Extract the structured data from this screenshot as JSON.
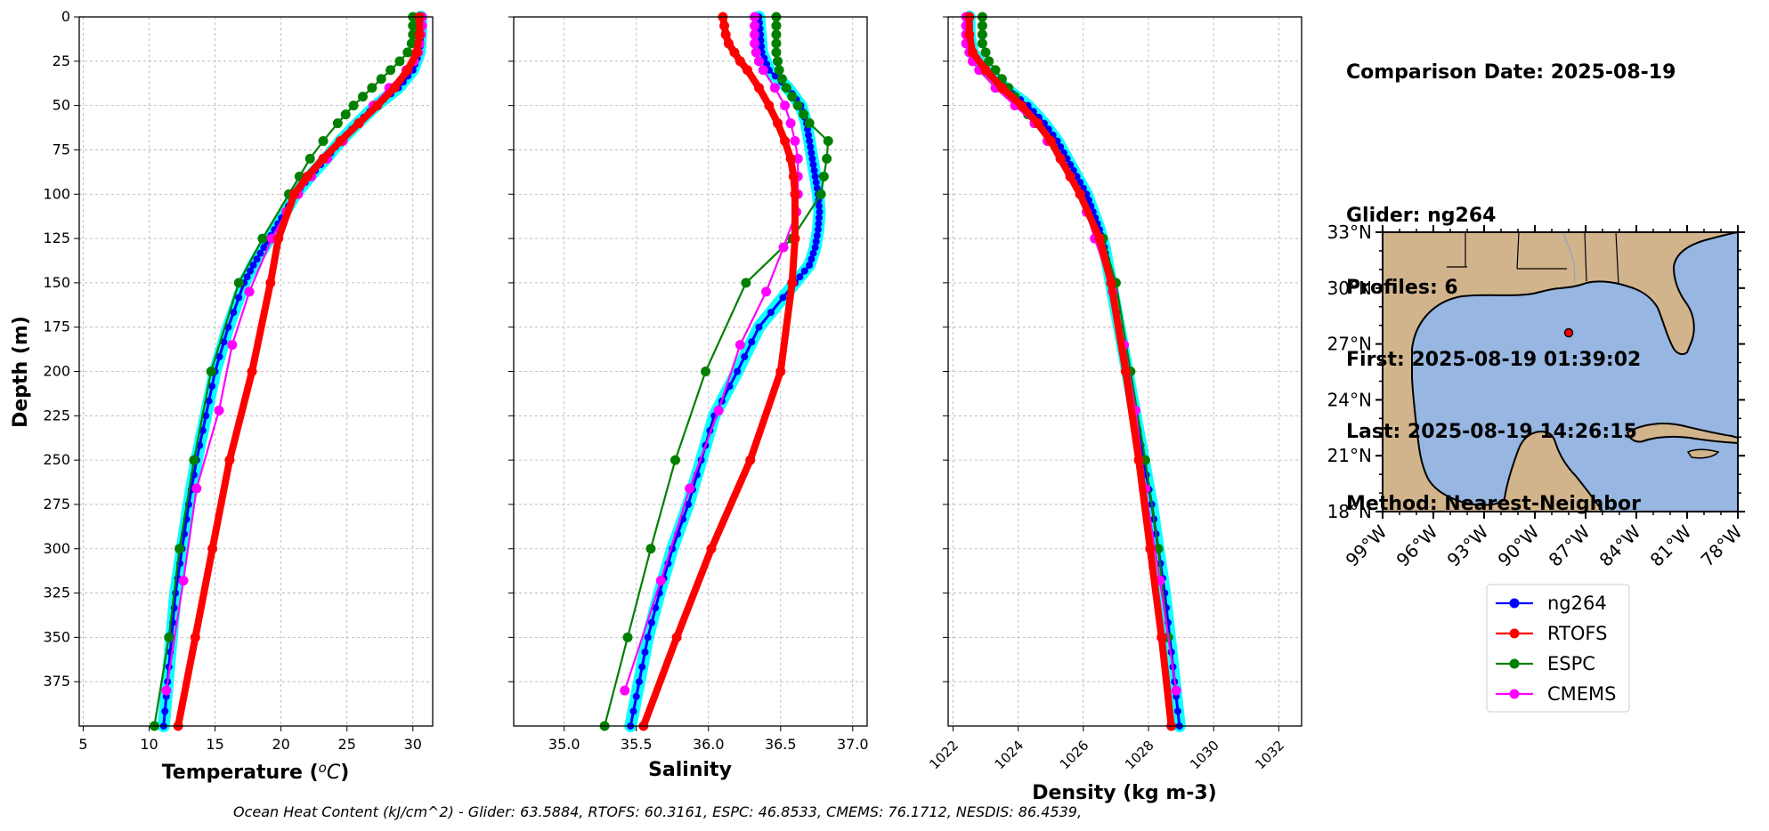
{
  "info": {
    "date_line": "Comparison Date: 2025-08-19",
    "glider_line": "Glider: ng264",
    "profiles_line": "Profiles: 6",
    "first_line": "First: 2025-08-19 01:39:02",
    "last_line": "Last: 2025-08-19 14:26:15",
    "method_line": "Method: Nearest-Neighbor"
  },
  "footer_text": "Ocean Heat Content (kJ/cm^2) - Glider: 63.5884,  RTOFS: 60.3161,  ESPC: 46.8533,  CMEMS: 76.1712,  NESDIS: 86.4539,",
  "colors": {
    "glider": "#0000ff",
    "glider_spread": "#00ffff",
    "rtofs": "#ff0000",
    "espc": "#008000",
    "cmems": "#ff00ff",
    "land": "#d2b48c",
    "ocean": "#97b6e1"
  },
  "legend": {
    "entries": [
      {
        "label": "ng264",
        "color": "#0000ff"
      },
      {
        "label": "RTOFS",
        "color": "#ff0000"
      },
      {
        "label": "ESPC",
        "color": "#008000"
      },
      {
        "label": "CMEMS",
        "color": "#ff00ff"
      }
    ]
  },
  "map": {
    "lat_ticks": [
      "33°N",
      "30°N",
      "27°N",
      "24°N",
      "21°N",
      "18°N"
    ],
    "lon_ticks": [
      "99°W",
      "96°W",
      "93°W",
      "90°W",
      "87°W",
      "84°W",
      "81°W",
      "78°W"
    ],
    "extent": {
      "lon": [
        -99,
        -78
      ],
      "lat": [
        18,
        33
      ]
    },
    "glider_location": {
      "lon": -88.0,
      "lat": 27.6
    }
  },
  "chart_data": [
    {
      "type": "line",
      "xlabel": "Temperature (°C)",
      "ylabel": "Depth (m)",
      "xlim": [
        4.7,
        31.5
      ],
      "ylim": [
        400,
        0
      ],
      "y_inverted": true,
      "grid": true,
      "x_ticks": [
        5,
        10,
        15,
        20,
        25,
        30
      ],
      "y_ticks": [
        0,
        25,
        50,
        75,
        100,
        125,
        150,
        175,
        200,
        225,
        250,
        275,
        300,
        325,
        350,
        375
      ],
      "series": [
        {
          "name": "ng264",
          "color": "#0000ff",
          "style": "glider",
          "depth": [
            0,
            10,
            20,
            30,
            40,
            50,
            60,
            70,
            80,
            90,
            100,
            110,
            120,
            130,
            140,
            150,
            175,
            200,
            225,
            250,
            275,
            300,
            325,
            350,
            375,
            400
          ],
          "values": [
            30.6,
            30.6,
            30.5,
            30.0,
            28.9,
            27.2,
            25.8,
            24.5,
            23.4,
            22.2,
            21.1,
            20.3,
            19.5,
            18.7,
            17.9,
            17.2,
            16.0,
            15.0,
            14.3,
            13.6,
            13.0,
            12.5,
            12.0,
            11.7,
            11.4,
            11.1
          ]
        },
        {
          "name": "RTOFS",
          "color": "#ff0000",
          "style": "model_thick",
          "depth": [
            0,
            10,
            20,
            30,
            40,
            50,
            60,
            70,
            80,
            90,
            100,
            125,
            150,
            200,
            250,
            300,
            350,
            400
          ],
          "values": [
            30.5,
            30.5,
            30.3,
            29.6,
            28.6,
            27.3,
            25.9,
            24.5,
            23.2,
            22.0,
            21.0,
            19.8,
            19.2,
            17.8,
            16.1,
            14.8,
            13.5,
            12.2
          ]
        },
        {
          "name": "ESPC",
          "color": "#008000",
          "style": "model",
          "depth": [
            0,
            5,
            10,
            15,
            20,
            25,
            30,
            35,
            40,
            45,
            50,
            55,
            60,
            70,
            80,
            90,
            100,
            125,
            150,
            200,
            250,
            300,
            350,
            400
          ],
          "values": [
            30.0,
            30.0,
            30.0,
            29.9,
            29.6,
            29.0,
            28.3,
            27.6,
            26.9,
            26.2,
            25.5,
            24.9,
            24.3,
            23.2,
            22.2,
            21.4,
            20.6,
            18.6,
            16.8,
            14.7,
            13.4,
            12.3,
            11.5,
            10.4
          ]
        },
        {
          "name": "CMEMS",
          "color": "#ff00ff",
          "style": "model",
          "depth": [
            0,
            5,
            10,
            15,
            20,
            25,
            30,
            40,
            50,
            60,
            70,
            80,
            90,
            100,
            110,
            125,
            155,
            185,
            222,
            266,
            318,
            380
          ],
          "values": [
            30.7,
            30.7,
            30.6,
            30.5,
            30.4,
            30.1,
            29.5,
            28.2,
            27.0,
            25.9,
            24.7,
            23.5,
            22.3,
            21.3,
            20.4,
            19.3,
            17.6,
            16.3,
            15.3,
            13.6,
            12.6,
            11.3
          ]
        }
      ]
    },
    {
      "type": "line",
      "xlabel": "Salinity",
      "ylabel": "",
      "xlim": [
        34.65,
        37.1
      ],
      "ylim": [
        400,
        0
      ],
      "y_inverted": true,
      "grid": true,
      "x_ticks": [
        35.0,
        35.5,
        36.0,
        36.5,
        37.0
      ],
      "series": [
        {
          "name": "ng264",
          "color": "#0000ff",
          "style": "glider",
          "depth": [
            0,
            10,
            20,
            30,
            40,
            50,
            60,
            70,
            80,
            90,
            100,
            110,
            120,
            130,
            140,
            150,
            175,
            200,
            225,
            250,
            275,
            300,
            325,
            350,
            375,
            400
          ],
          "values": [
            36.35,
            36.36,
            36.37,
            36.42,
            36.55,
            36.64,
            36.68,
            36.7,
            36.72,
            36.74,
            36.76,
            36.77,
            36.76,
            36.74,
            36.7,
            36.6,
            36.35,
            36.2,
            36.04,
            35.95,
            35.86,
            35.75,
            35.66,
            35.58,
            35.52,
            35.46
          ]
        },
        {
          "name": "RTOFS",
          "color": "#ff0000",
          "style": "model_thick",
          "depth": [
            0,
            5,
            10,
            15,
            20,
            25,
            30,
            40,
            50,
            60,
            70,
            80,
            90,
            100,
            125,
            150,
            200,
            250,
            300,
            350,
            400
          ],
          "values": [
            36.1,
            36.11,
            36.12,
            36.14,
            36.18,
            36.22,
            36.27,
            36.35,
            36.42,
            36.48,
            36.53,
            36.57,
            36.59,
            36.6,
            36.6,
            36.58,
            36.5,
            36.29,
            36.02,
            35.78,
            35.55
          ]
        },
        {
          "name": "ESPC",
          "color": "#008000",
          "style": "model",
          "depth": [
            0,
            5,
            10,
            15,
            20,
            25,
            30,
            35,
            40,
            45,
            50,
            55,
            60,
            70,
            80,
            90,
            100,
            125,
            150,
            200,
            250,
            300,
            350,
            400
          ],
          "values": [
            36.47,
            36.47,
            36.47,
            36.47,
            36.47,
            36.48,
            36.49,
            36.51,
            36.54,
            36.58,
            36.62,
            36.66,
            36.7,
            36.83,
            36.82,
            36.8,
            36.78,
            36.58,
            36.26,
            35.98,
            35.77,
            35.6,
            35.44,
            35.28
          ]
        },
        {
          "name": "CMEMS",
          "color": "#ff00ff",
          "style": "model",
          "depth": [
            0,
            5,
            10,
            15,
            20,
            25,
            30,
            40,
            50,
            60,
            70,
            80,
            90,
            100,
            110,
            130,
            155,
            185,
            222,
            266,
            318,
            380
          ],
          "values": [
            36.32,
            36.32,
            36.32,
            36.32,
            36.33,
            36.35,
            36.38,
            36.46,
            36.53,
            36.57,
            36.6,
            36.62,
            36.62,
            36.62,
            36.61,
            36.52,
            36.4,
            36.22,
            36.07,
            35.87,
            35.67,
            35.42
          ]
        }
      ]
    },
    {
      "type": "line",
      "xlabel": "Density (kg m-3)",
      "ylabel": "",
      "xlim": [
        1021.85,
        1032.7
      ],
      "ylim": [
        400,
        0
      ],
      "y_inverted": true,
      "grid": true,
      "x_ticks": [
        1022,
        1024,
        1026,
        1028,
        1030,
        1032
      ],
      "series": [
        {
          "name": "ng264",
          "color": "#0000ff",
          "style": "glider",
          "depth": [
            0,
            10,
            20,
            30,
            40,
            50,
            60,
            70,
            80,
            90,
            100,
            110,
            120,
            130,
            140,
            150,
            175,
            200,
            225,
            250,
            275,
            300,
            325,
            350,
            375,
            400
          ],
          "values": [
            1022.5,
            1022.5,
            1022.6,
            1023.0,
            1023.6,
            1024.3,
            1024.8,
            1025.2,
            1025.5,
            1025.8,
            1026.1,
            1026.3,
            1026.5,
            1026.65,
            1026.75,
            1026.85,
            1027.1,
            1027.35,
            1027.6,
            1027.85,
            1028.1,
            1028.3,
            1028.5,
            1028.65,
            1028.8,
            1028.95
          ]
        },
        {
          "name": "RTOFS",
          "color": "#ff0000",
          "style": "model_thick",
          "depth": [
            0,
            10,
            20,
            30,
            40,
            50,
            60,
            70,
            80,
            90,
            100,
            125,
            150,
            200,
            250,
            300,
            350,
            400
          ],
          "values": [
            1022.5,
            1022.5,
            1022.6,
            1023.0,
            1023.5,
            1024.1,
            1024.6,
            1025.0,
            1025.3,
            1025.6,
            1025.9,
            1026.5,
            1026.85,
            1027.3,
            1027.7,
            1028.05,
            1028.4,
            1028.7
          ]
        },
        {
          "name": "ESPC",
          "color": "#008000",
          "style": "model",
          "depth": [
            0,
            5,
            10,
            15,
            20,
            25,
            30,
            35,
            40,
            45,
            50,
            55,
            60,
            70,
            80,
            90,
            100,
            125,
            150,
            200,
            250,
            300,
            350
          ],
          "values": [
            1022.9,
            1022.9,
            1022.9,
            1022.9,
            1023.0,
            1023.1,
            1023.3,
            1023.5,
            1023.7,
            1023.9,
            1024.1,
            1024.3,
            1024.5,
            1024.9,
            1025.3,
            1025.6,
            1025.9,
            1026.6,
            1027.0,
            1027.45,
            1027.9,
            1028.3,
            1028.6
          ]
        },
        {
          "name": "CMEMS",
          "color": "#ff00ff",
          "style": "model",
          "depth": [
            0,
            5,
            10,
            15,
            20,
            25,
            30,
            40,
            50,
            60,
            70,
            80,
            90,
            100,
            110,
            125,
            155,
            185,
            222,
            266,
            318,
            380
          ],
          "values": [
            1022.4,
            1022.4,
            1022.4,
            1022.4,
            1022.5,
            1022.6,
            1022.8,
            1023.3,
            1023.9,
            1024.5,
            1024.9,
            1025.3,
            1025.6,
            1025.9,
            1026.1,
            1026.35,
            1026.9,
            1027.25,
            1027.6,
            1027.9,
            1028.35,
            1028.85
          ]
        }
      ]
    }
  ]
}
